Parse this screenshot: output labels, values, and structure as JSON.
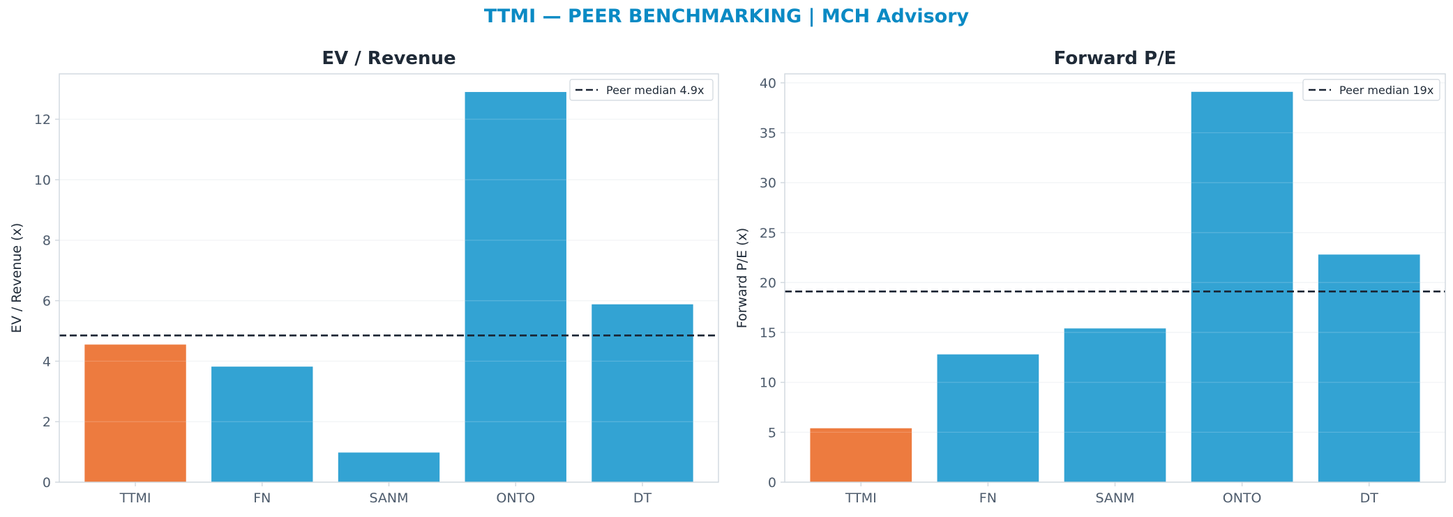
{
  "figure": {
    "suptitle": "TTMI — PEER BENCHMARKING | MCH Advisory",
    "colors": {
      "subject": "#ed7b3f",
      "peer": "#33a3d3",
      "median_line": "#1a2433",
      "axis_text": "#4d5b6c",
      "title_text": "#1f2a37",
      "frame": "#d0d7de",
      "grid": "#f0f2f4"
    }
  },
  "chart_data": [
    {
      "type": "bar",
      "title": "EV / Revenue",
      "xlabel": "",
      "ylabel": "EV / Revenue (x)",
      "categories": [
        "TTMI",
        "FN",
        "SANM",
        "ONTO",
        "DT"
      ],
      "values": [
        4.55,
        3.82,
        0.98,
        12.9,
        5.88
      ],
      "highlight": "TTMI",
      "ylim": [
        0,
        13.5
      ],
      "yticks": [
        0,
        2,
        4,
        6,
        8,
        10,
        12
      ],
      "reference_line": {
        "value": 4.85,
        "label": "Peer median 4.9x"
      },
      "legend": "top-right",
      "grid": true
    },
    {
      "type": "bar",
      "title": "Forward P/E",
      "xlabel": "",
      "ylabel": "Forward P/E (x)",
      "categories": [
        "TTMI",
        "FN",
        "SANM",
        "ONTO",
        "DT"
      ],
      "values": [
        5.4,
        12.8,
        15.4,
        39.1,
        22.8
      ],
      "highlight": "TTMI",
      "ylim": [
        0,
        40.9
      ],
      "yticks": [
        0,
        5,
        10,
        15,
        20,
        25,
        30,
        35,
        40
      ],
      "reference_line": {
        "value": 19.1,
        "label": "Peer median 19x"
      },
      "legend": "top-right",
      "grid": true
    }
  ]
}
